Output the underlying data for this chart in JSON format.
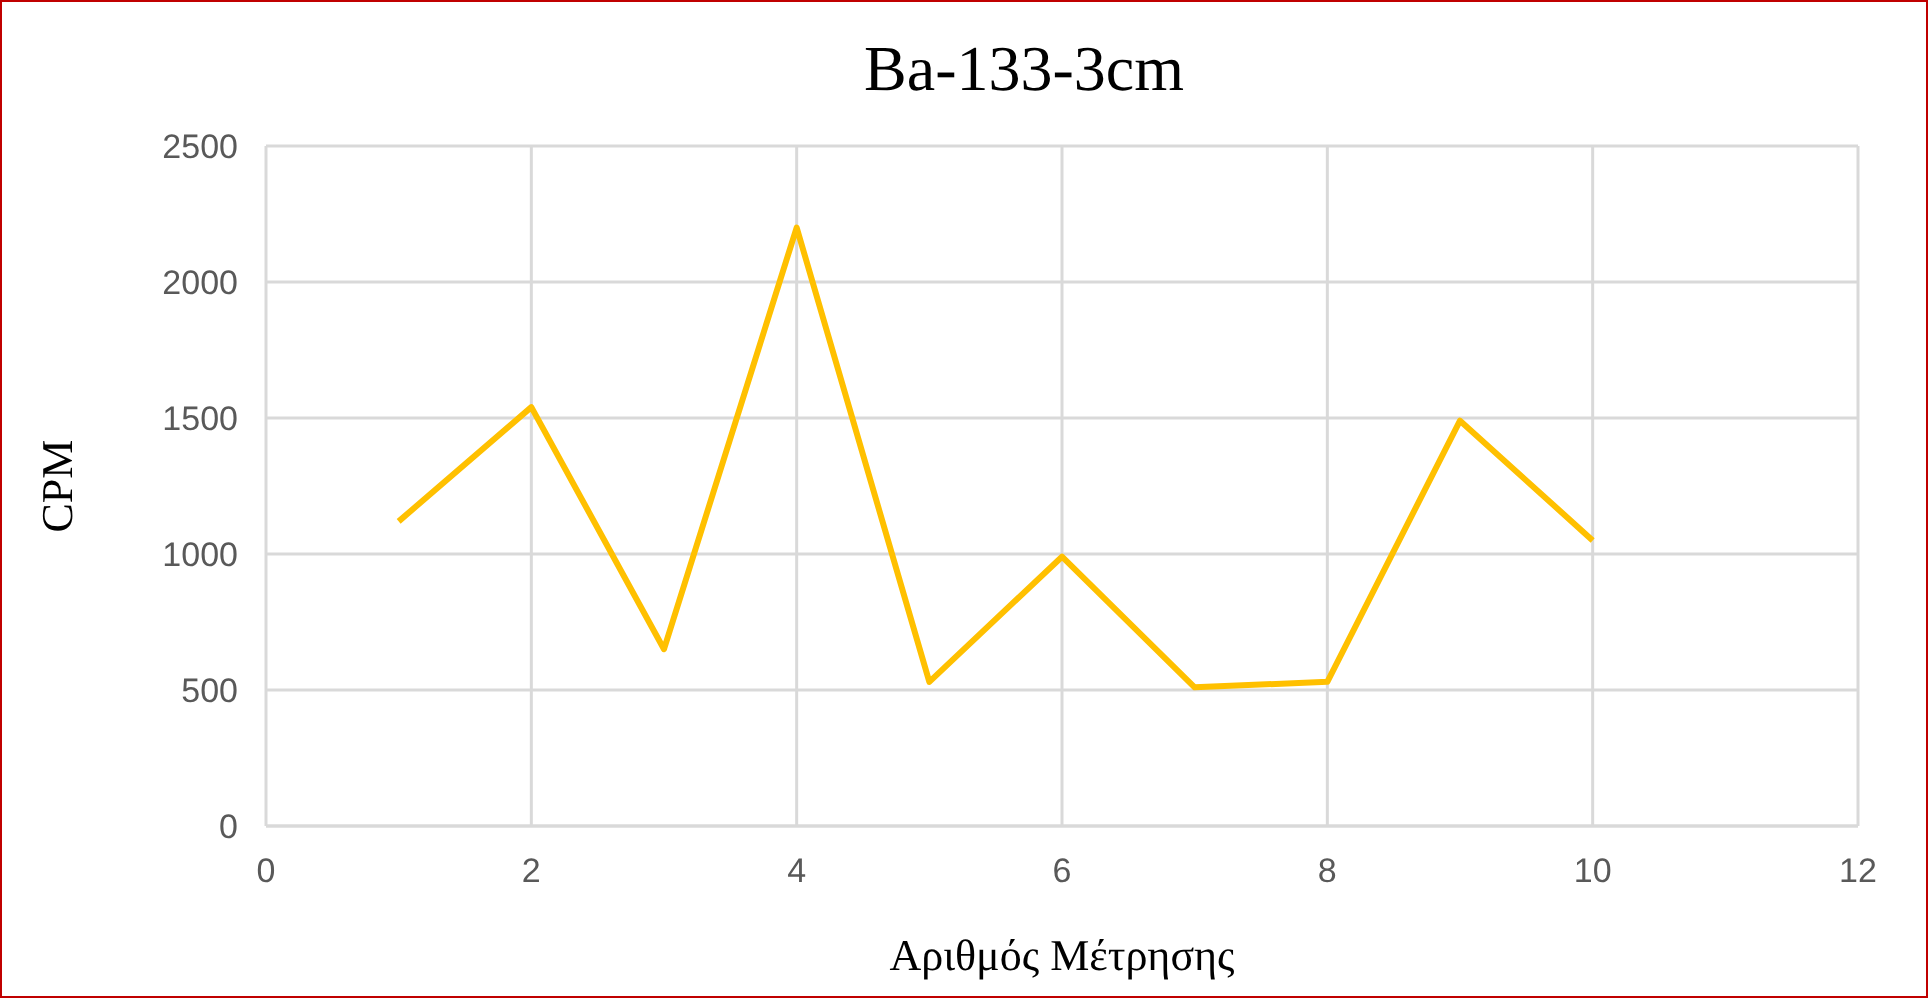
{
  "chart_data": {
    "type": "line",
    "title": "Ba-133-3cm",
    "xlabel": "Αριθμός Μέτρησης",
    "ylabel": "CPM",
    "x": [
      1,
      2,
      3,
      4,
      5,
      6,
      7,
      8,
      9,
      10
    ],
    "series": [
      {
        "color": "#ffc000",
        "values": [
          1120,
          1540,
          650,
          2200,
          530,
          990,
          510,
          530,
          1490,
          1050
        ]
      }
    ],
    "xlim": [
      0,
      12
    ],
    "xticks": [
      0,
      2,
      4,
      6,
      8,
      10,
      12
    ],
    "ylim": [
      0,
      2500
    ],
    "yticks": [
      0,
      500,
      1000,
      1500,
      2000,
      2500
    ],
    "grid": true,
    "legend": false,
    "marker": "none",
    "line_style": "solid"
  }
}
